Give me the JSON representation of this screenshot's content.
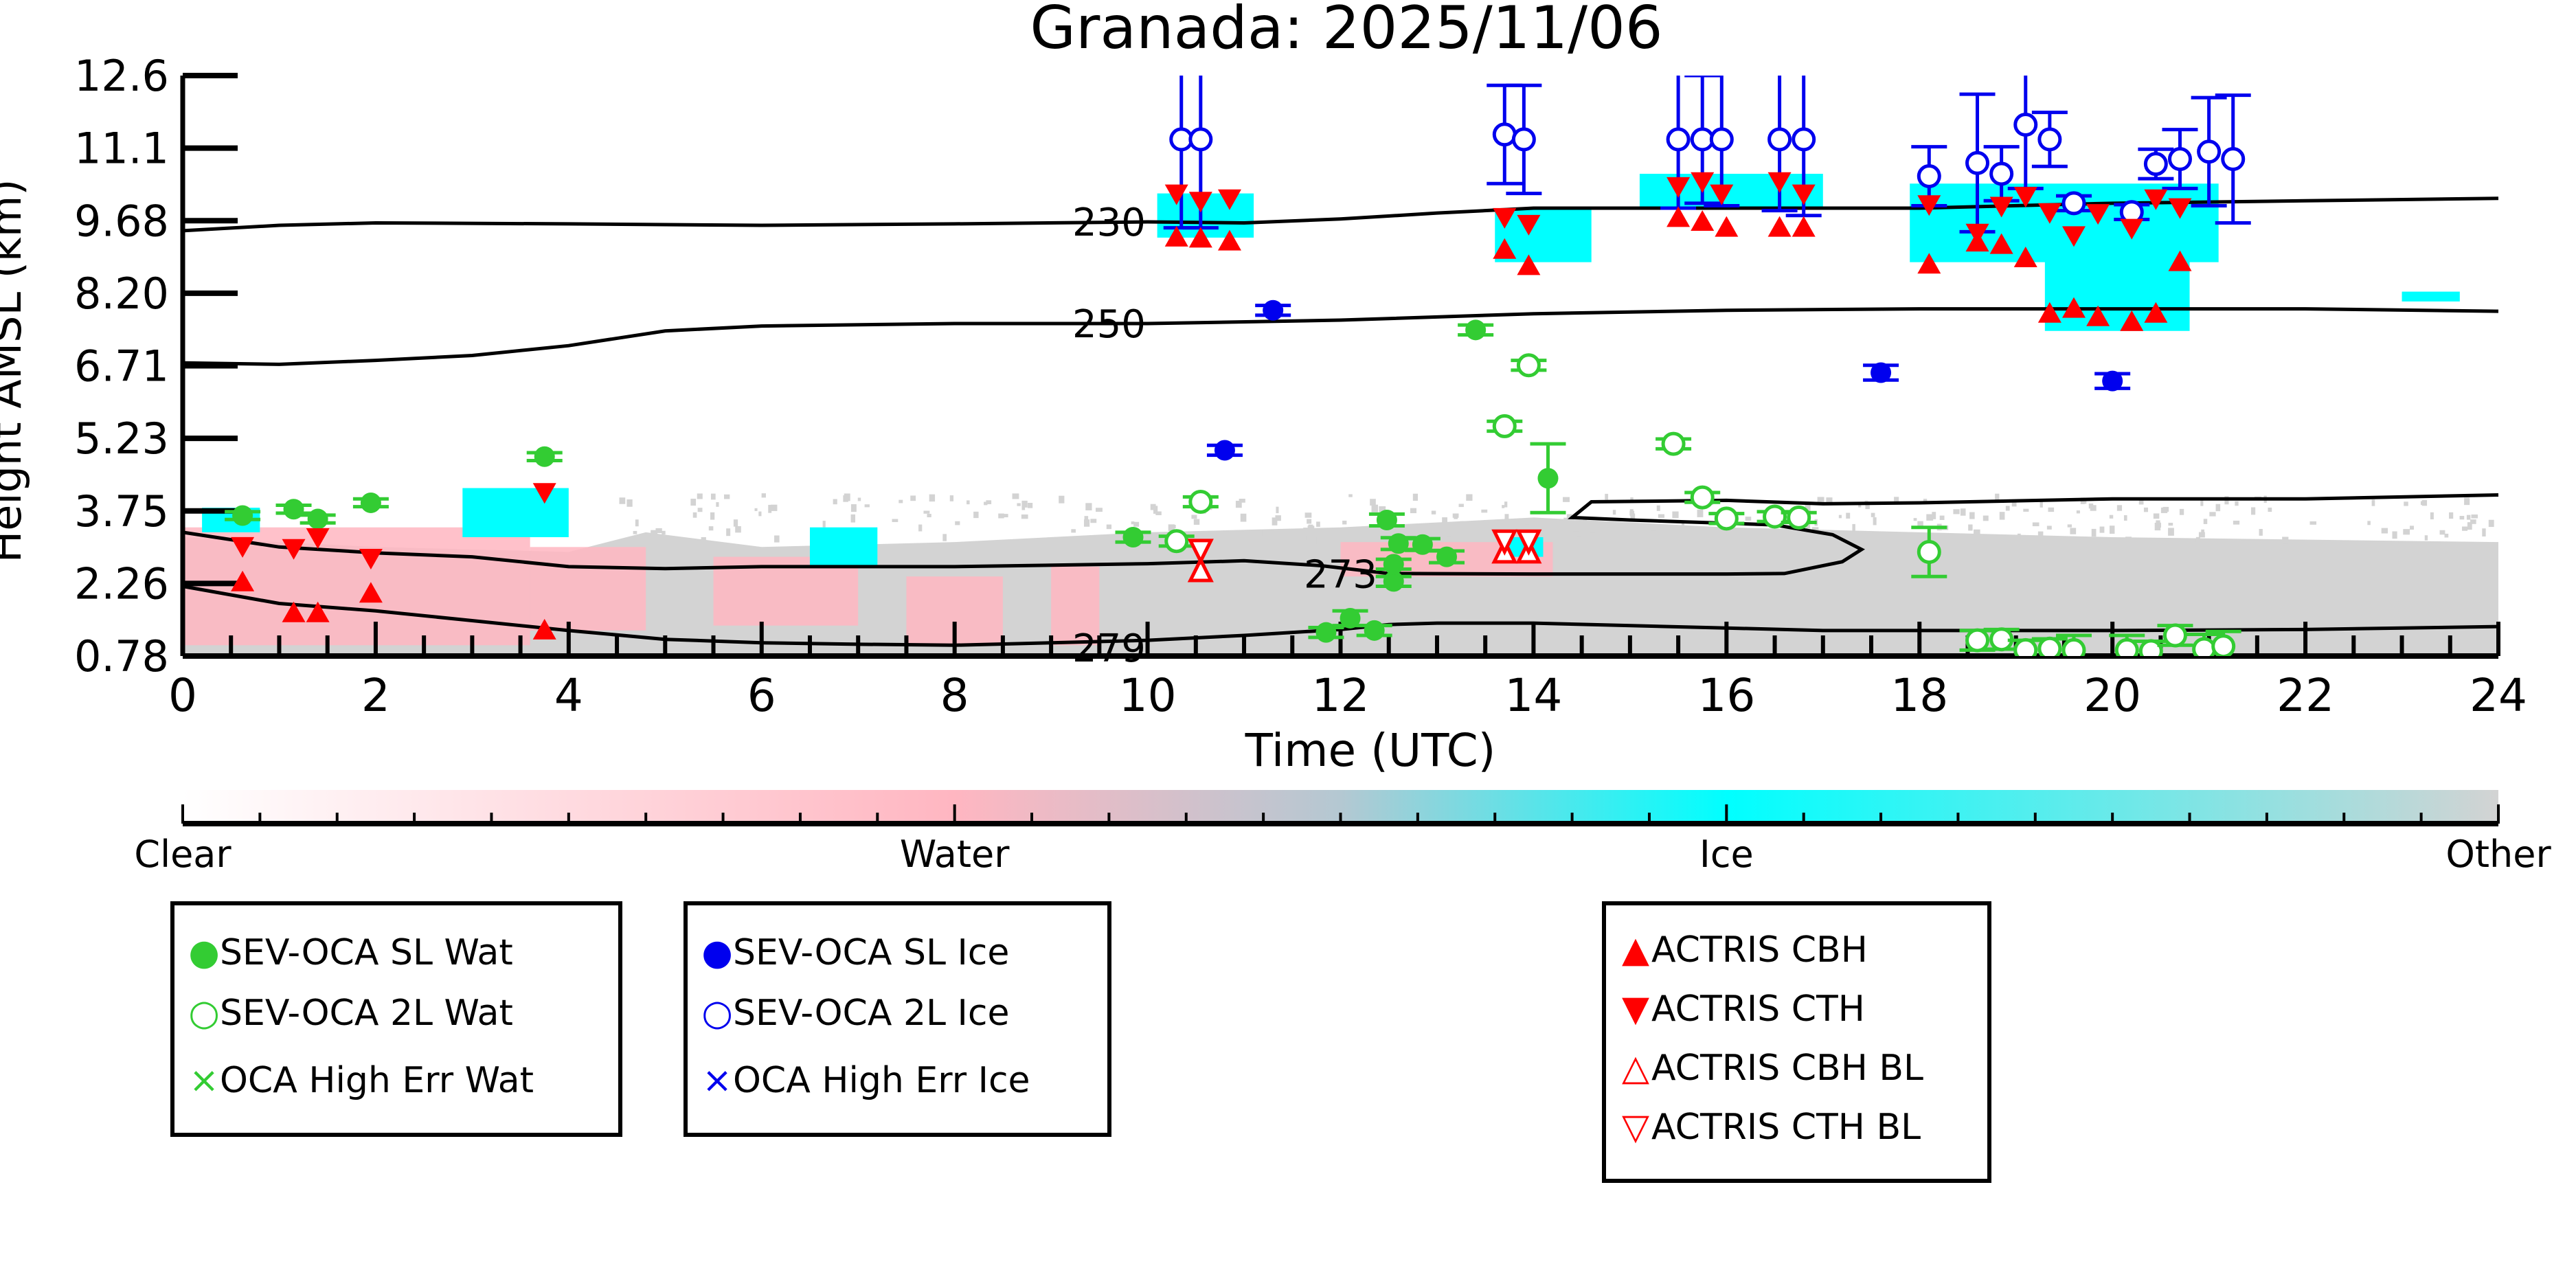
{
  "chart_data": {
    "type": "scatter",
    "title": "Granada: 2025/11/06",
    "xlabel": "Time (UTC)",
    "ylabel": "Height AMSL (km)",
    "xlim": [
      0,
      24
    ],
    "ylim": [
      0.78,
      12.6
    ],
    "xticks": [
      "0",
      "2",
      "4",
      "6",
      "8",
      "10",
      "12",
      "14",
      "16",
      "18",
      "20",
      "22",
      "24"
    ],
    "yticks": [
      "0.78",
      "2.26",
      "3.75",
      "5.23",
      "6.71",
      "8.20",
      "9.68",
      "11.1",
      "12.6"
    ],
    "grid": false,
    "background": "cloud-type curtain (Clear/Water/Ice/Other) with temperature contours",
    "contours": [
      {
        "label": "230",
        "points": [
          [
            0,
            9.44
          ],
          [
            1,
            9.55
          ],
          [
            2,
            9.6
          ],
          [
            4,
            9.58
          ],
          [
            6,
            9.55
          ],
          [
            8,
            9.58
          ],
          [
            10,
            9.62
          ],
          [
            11,
            9.6
          ],
          [
            12,
            9.68
          ],
          [
            13,
            9.8
          ],
          [
            14,
            9.9
          ],
          [
            16,
            9.9
          ],
          [
            18,
            9.9
          ],
          [
            20,
            10.0
          ],
          [
            22,
            10.05
          ],
          [
            24,
            10.1
          ]
        ]
      },
      {
        "label": "250",
        "points": [
          [
            0,
            6.75
          ],
          [
            1,
            6.72
          ],
          [
            2,
            6.8
          ],
          [
            3,
            6.9
          ],
          [
            4,
            7.1
          ],
          [
            5,
            7.4
          ],
          [
            6,
            7.5
          ],
          [
            8,
            7.55
          ],
          [
            10,
            7.55
          ],
          [
            12,
            7.62
          ],
          [
            14,
            7.75
          ],
          [
            16,
            7.82
          ],
          [
            18,
            7.85
          ],
          [
            20,
            7.85
          ],
          [
            22,
            7.85
          ],
          [
            24,
            7.8
          ]
        ]
      },
      {
        "label": "273",
        "points": [
          [
            0,
            3.3
          ],
          [
            1,
            3.0
          ],
          [
            2,
            2.88
          ],
          [
            3,
            2.8
          ],
          [
            4,
            2.6
          ],
          [
            5,
            2.56
          ],
          [
            6,
            2.6
          ],
          [
            8,
            2.6
          ],
          [
            10,
            2.66
          ],
          [
            11,
            2.72
          ],
          [
            11.8,
            2.62
          ],
          [
            12.5,
            2.46
          ],
          [
            14,
            2.45
          ],
          [
            16,
            2.45
          ],
          [
            16.6,
            2.46
          ],
          [
            17.2,
            2.7
          ],
          [
            17.4,
            2.95
          ],
          [
            17.1,
            3.25
          ],
          [
            16.5,
            3.45
          ],
          [
            15,
            3.55
          ],
          [
            14.4,
            3.6
          ],
          [
            14.6,
            3.92
          ],
          [
            16,
            3.95
          ],
          [
            17,
            3.88
          ],
          [
            18,
            3.9
          ],
          [
            20,
            3.98
          ],
          [
            22,
            3.98
          ],
          [
            24,
            4.06
          ]
        ]
      },
      {
        "label": "279",
        "points": [
          [
            0,
            2.2
          ],
          [
            1,
            1.85
          ],
          [
            2,
            1.7
          ],
          [
            3,
            1.5
          ],
          [
            4,
            1.3
          ],
          [
            5,
            1.12
          ],
          [
            6,
            1.05
          ],
          [
            7,
            1.02
          ],
          [
            8,
            1.0
          ],
          [
            9,
            1.05
          ],
          [
            10,
            1.1
          ],
          [
            11,
            1.2
          ],
          [
            12,
            1.32
          ],
          [
            12.5,
            1.42
          ],
          [
            13,
            1.45
          ],
          [
            14,
            1.45
          ],
          [
            16,
            1.35
          ],
          [
            17,
            1.3
          ],
          [
            18,
            1.3
          ],
          [
            20,
            1.3
          ],
          [
            22,
            1.32
          ],
          [
            24,
            1.38
          ]
        ]
      }
    ],
    "series": [
      {
        "name": "SEV-OCA SL Wat",
        "marker": "filled-circle",
        "color": "#33cc33",
        "points": [
          [
            0.62,
            3.64,
            0.08
          ],
          [
            1.15,
            3.77,
            0.08
          ],
          [
            1.4,
            3.57,
            0.08
          ],
          [
            1.95,
            3.9,
            0.08
          ],
          [
            3.75,
            4.84,
            0.08
          ],
          [
            9.85,
            3.2,
            0.1
          ],
          [
            11.85,
            1.26,
            0.1
          ],
          [
            12.1,
            1.55,
            0.15
          ],
          [
            12.35,
            1.3,
            0.1
          ],
          [
            12.48,
            3.55,
            0.12
          ],
          [
            12.55,
            2.3,
            0.1
          ],
          [
            12.55,
            2.65,
            0.1
          ],
          [
            12.6,
            3.07,
            0.12
          ],
          [
            12.85,
            3.05,
            0.12
          ],
          [
            13.1,
            2.8,
            0.12
          ],
          [
            13.4,
            7.42,
            0.1
          ],
          [
            14.15,
            4.4,
            0.7
          ]
        ]
      },
      {
        "name": "SEV-OCA 2L Wat",
        "marker": "open-circle",
        "color": "#33cc33",
        "points": [
          [
            10.3,
            3.12,
            0.1
          ],
          [
            10.55,
            3.92,
            0.1
          ],
          [
            13.7,
            5.46,
            0.1
          ],
          [
            13.95,
            6.7,
            0.1
          ],
          [
            15.45,
            5.1,
            0.1
          ],
          [
            15.75,
            4.01,
            0.1
          ],
          [
            16.0,
            3.58,
            0.1
          ],
          [
            16.5,
            3.62,
            0.1
          ],
          [
            16.75,
            3.6,
            0.1
          ],
          [
            18.1,
            2.9,
            0.5
          ],
          [
            18.6,
            1.1,
            0.2
          ],
          [
            18.85,
            1.12,
            0.2
          ],
          [
            19.1,
            0.9,
            0.2
          ],
          [
            19.35,
            0.93,
            0.2
          ],
          [
            19.6,
            0.9,
            0.3
          ],
          [
            20.15,
            0.9,
            0.3
          ],
          [
            20.4,
            0.88,
            0.2
          ],
          [
            20.65,
            1.2,
            0.2
          ],
          [
            20.95,
            0.92,
            0.3
          ],
          [
            21.15,
            0.98,
            0.3
          ]
        ]
      },
      {
        "name": "OCA High Err Wat",
        "marker": "x",
        "color": "#33cc33",
        "points": []
      },
      {
        "name": "SEV-OCA SL Ice",
        "marker": "filled-circle",
        "color": "#0000ee",
        "points": [
          [
            11.3,
            7.82,
            0.1
          ],
          [
            10.8,
            4.97,
            0.1
          ],
          [
            17.6,
            6.55,
            0.15
          ],
          [
            20.0,
            6.38,
            0.15
          ]
        ]
      },
      {
        "name": "SEV-OCA 2L Ice",
        "marker": "open-circle",
        "color": "#0000ee",
        "points": [
          [
            10.35,
            11.3,
            1.8
          ],
          [
            10.55,
            11.3,
            1.8
          ],
          [
            13.7,
            11.4,
            1.0
          ],
          [
            13.9,
            11.3,
            1.1
          ],
          [
            15.5,
            11.3,
            1.4
          ],
          [
            15.75,
            11.3,
            1.3
          ],
          [
            15.95,
            11.3,
            1.35
          ],
          [
            16.55,
            11.3,
            1.45
          ],
          [
            16.8,
            11.3,
            1.55
          ],
          [
            18.1,
            10.55,
            0.6
          ],
          [
            18.6,
            10.82,
            1.4
          ],
          [
            18.85,
            10.6,
            0.55
          ],
          [
            19.1,
            11.6,
            1.3
          ],
          [
            19.35,
            11.3,
            0.55
          ],
          [
            19.6,
            10.0,
            0.15
          ],
          [
            20.2,
            9.82,
            0.15
          ],
          [
            20.45,
            10.8,
            0.3
          ],
          [
            20.7,
            10.9,
            0.6
          ],
          [
            21.0,
            11.05,
            1.1
          ],
          [
            21.25,
            10.9,
            1.3
          ]
        ]
      },
      {
        "name": "OCA High Err Ice",
        "marker": "x",
        "color": "#0000ee",
        "points": []
      },
      {
        "name": "ACTRIS CBH",
        "marker": "triangle-up",
        "color": "#ff0000",
        "points": [
          [
            0.62,
            2.28
          ],
          [
            1.15,
            1.65
          ],
          [
            1.4,
            1.65
          ],
          [
            1.95,
            2.05
          ],
          [
            3.75,
            1.3
          ],
          [
            10.3,
            9.3
          ],
          [
            10.55,
            9.28
          ],
          [
            10.85,
            9.22
          ],
          [
            13.7,
            9.05
          ],
          [
            13.95,
            8.72
          ],
          [
            15.5,
            9.7
          ],
          [
            15.75,
            9.62
          ],
          [
            16.0,
            9.5
          ],
          [
            16.55,
            9.5
          ],
          [
            16.8,
            9.5
          ],
          [
            18.1,
            8.75
          ],
          [
            18.6,
            9.2
          ],
          [
            18.85,
            9.15
          ],
          [
            19.1,
            8.88
          ],
          [
            19.35,
            7.75
          ],
          [
            19.6,
            7.85
          ],
          [
            19.85,
            7.68
          ],
          [
            20.2,
            7.58
          ],
          [
            20.45,
            7.75
          ],
          [
            20.7,
            8.8
          ]
        ]
      },
      {
        "name": "ACTRIS CTH",
        "marker": "triangle-down",
        "color": "#ff0000",
        "points": [
          [
            0.62,
            3.02
          ],
          [
            1.15,
            2.98
          ],
          [
            1.4,
            3.2
          ],
          [
            1.95,
            2.78
          ],
          [
            3.75,
            4.12
          ],
          [
            10.3,
            10.2
          ],
          [
            10.55,
            10.05
          ],
          [
            10.85,
            10.1
          ],
          [
            13.7,
            9.72
          ],
          [
            13.95,
            9.58
          ],
          [
            15.5,
            10.35
          ],
          [
            15.75,
            10.45
          ],
          [
            15.95,
            10.2
          ],
          [
            16.55,
            10.45
          ],
          [
            16.8,
            10.2
          ],
          [
            18.1,
            9.98
          ],
          [
            18.6,
            9.4
          ],
          [
            18.85,
            9.95
          ],
          [
            19.1,
            10.15
          ],
          [
            19.35,
            9.82
          ],
          [
            19.6,
            9.35
          ],
          [
            19.85,
            9.8
          ],
          [
            20.2,
            9.5
          ],
          [
            20.45,
            10.1
          ],
          [
            20.7,
            9.92
          ]
        ]
      },
      {
        "name": "ACTRIS CBH BL",
        "marker": "open-triangle-up",
        "color": "#ff0000",
        "points": [
          [
            10.55,
            2.5
          ],
          [
            13.7,
            2.88
          ],
          [
            13.95,
            2.88
          ]
        ]
      },
      {
        "name": "ACTRIS CTH BL",
        "marker": "open-triangle-down",
        "color": "#ff0000",
        "points": [
          [
            10.55,
            2.95
          ],
          [
            13.7,
            3.14
          ],
          [
            13.95,
            3.14
          ]
        ]
      }
    ],
    "colorbar": {
      "labels": [
        "Clear",
        "Water",
        "Ice",
        "Other"
      ],
      "colors": [
        "#ffffff",
        "#ffb6c1",
        "#00ffff",
        "#d3d3d3"
      ]
    }
  },
  "legends": {
    "water": [
      {
        "label": "SEV-OCA SL Wat",
        "symbol": "●",
        "color": "#33cc33"
      },
      {
        "label": "SEV-OCA 2L Wat",
        "symbol": "○",
        "color": "#33cc33"
      },
      {
        "label": "OCA High Err Wat",
        "symbol": "×",
        "color": "#33cc33"
      }
    ],
    "ice": [
      {
        "label": "SEV-OCA SL Ice",
        "symbol": "●",
        "color": "#0000ee"
      },
      {
        "label": "SEV-OCA 2L Ice",
        "symbol": "○",
        "color": "#0000ee"
      },
      {
        "label": "OCA High Err Ice",
        "symbol": "×",
        "color": "#0000ee"
      }
    ],
    "actris": [
      {
        "label": "ACTRIS CBH",
        "symbol": "▲",
        "color": "#ff0000"
      },
      {
        "label": "ACTRIS CTH",
        "symbol": "▼",
        "color": "#ff0000"
      },
      {
        "label": "ACTRIS CBH BL",
        "symbol": "△",
        "color": "#ff0000"
      },
      {
        "label": "ACTRIS CTH BL",
        "symbol": "▽",
        "color": "#ff0000"
      }
    ]
  }
}
